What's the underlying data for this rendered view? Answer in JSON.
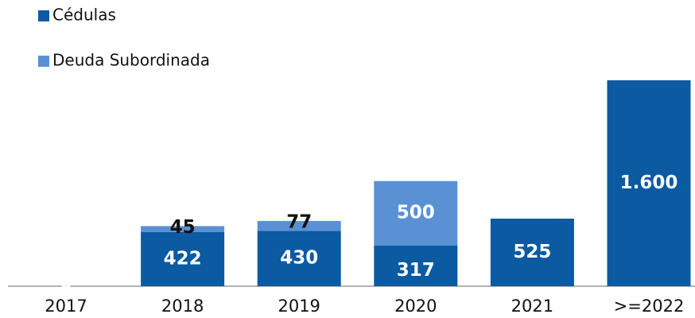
{
  "chart_data": {
    "type": "bar",
    "stacked": true,
    "categories": [
      "2017",
      "2018",
      "2019",
      "2020",
      "2021",
      ">=2022"
    ],
    "series": [
      {
        "name": "Cédulas",
        "color": "#0b5aa2",
        "values": [
          0,
          422,
          430,
          317,
          525,
          1600
        ],
        "value_labels": [
          "0",
          "422",
          "430",
          "317",
          "525",
          "1.600"
        ]
      },
      {
        "name": "Deuda Subordinada",
        "color": "#5a91d5",
        "values": [
          null,
          45,
          77,
          500,
          null,
          null
        ]
      }
    ],
    "ylim": [
      0,
      1600
    ]
  }
}
